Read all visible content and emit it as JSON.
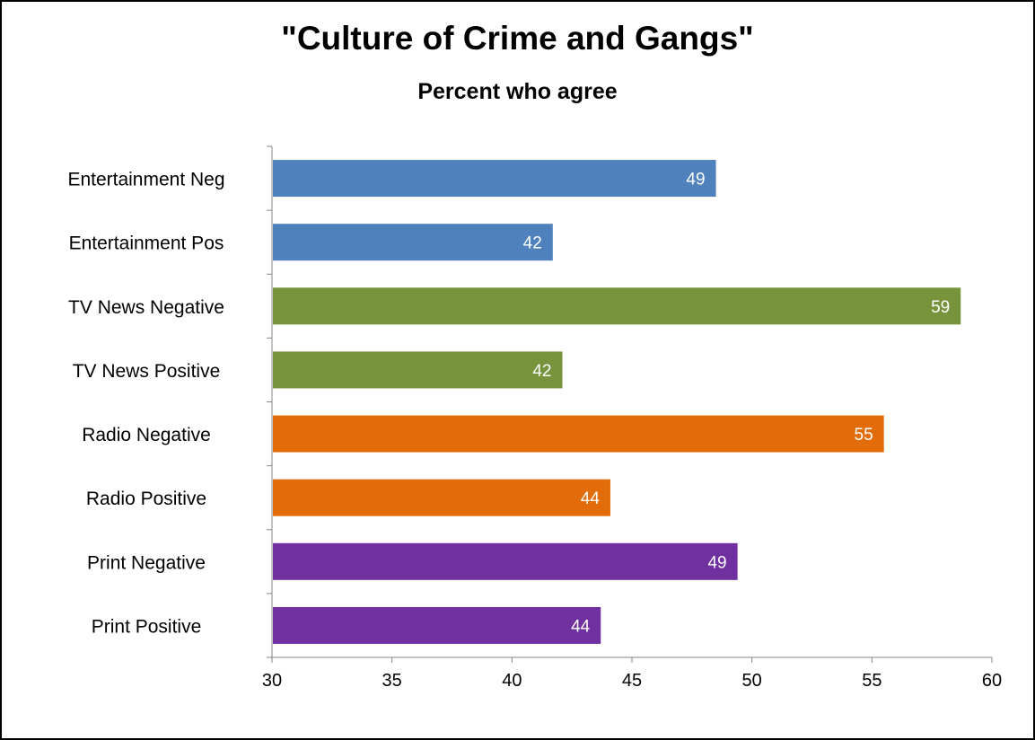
{
  "chart_data": {
    "type": "bar",
    "orientation": "horizontal",
    "title": "\"Culture of Crime and Gangs\"",
    "subtitle": "Percent who agree",
    "categories": [
      "Entertainment Neg",
      "Entertainment Pos",
      "TV News Negative",
      "TV News Positive",
      "Radio Negative",
      "Radio Positive",
      "Print Negative",
      "Print Positive"
    ],
    "values": [
      48.5,
      41.7,
      58.7,
      42.1,
      55.5,
      44.1,
      49.4,
      43.7
    ],
    "data_labels": [
      "49",
      "42",
      "59",
      "42",
      "55",
      "44",
      "49",
      "44"
    ],
    "bar_colors": [
      "#4f81bd",
      "#4f81bd",
      "#77933c",
      "#77933c",
      "#e36c0a",
      "#e36c0a",
      "#7030a0",
      "#7030a0"
    ],
    "xlim": [
      30,
      60
    ],
    "xticks": [
      30,
      35,
      40,
      45,
      50,
      55,
      60
    ],
    "xlabel": "",
    "ylabel": "",
    "grid": false,
    "legend": "none"
  }
}
